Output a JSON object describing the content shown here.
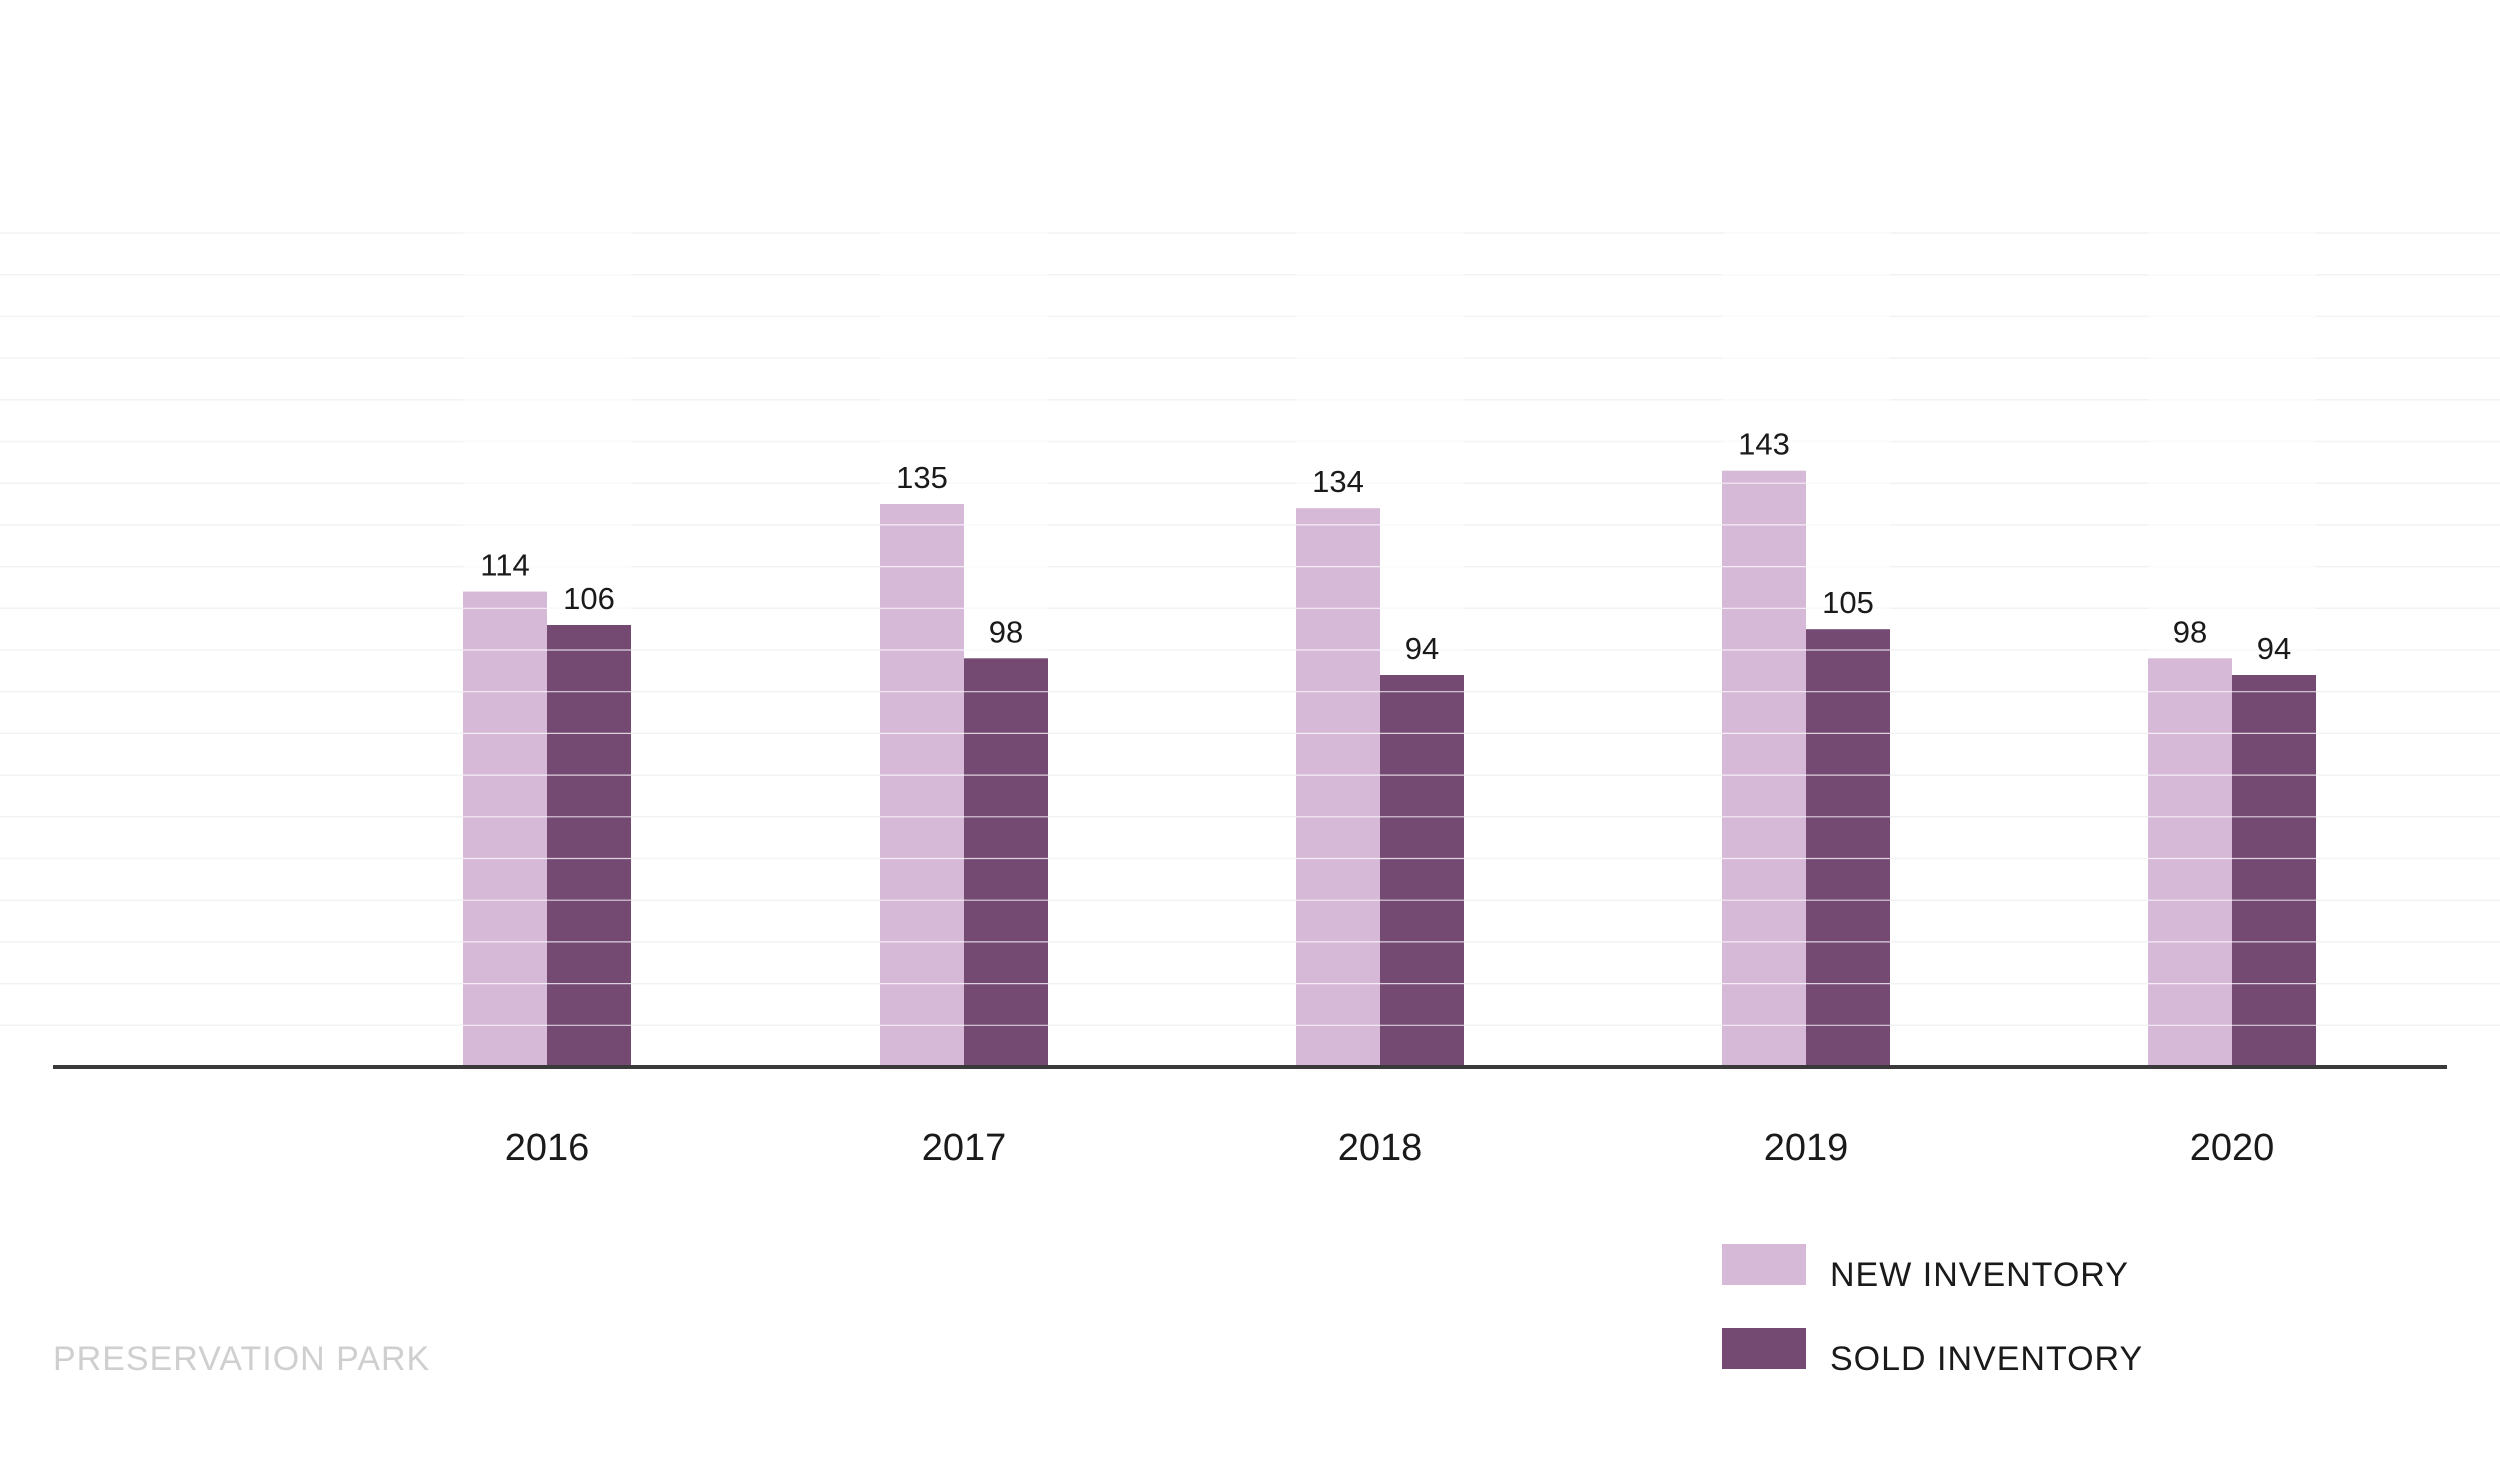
{
  "chart_data": {
    "type": "bar",
    "categories": [
      "2016",
      "2017",
      "2018",
      "2019",
      "2020"
    ],
    "series": [
      {
        "name": "NEW INVENTORY",
        "values": [
          114,
          135,
          134,
          143,
          98
        ],
        "color": "#d6b8d7"
      },
      {
        "name": "SOLD INVENTORY",
        "values": [
          106,
          98,
          94,
          105,
          94
        ],
        "color": "#744a73"
      }
    ],
    "ylim": [
      0,
      200
    ],
    "grid": true,
    "legend_position": "bottom-right"
  },
  "footer": {
    "label": "PRESERVATION PARK"
  },
  "colors": {
    "axis": "#3a3a3a",
    "grid": "#f2f2f2",
    "bar_grid": "#ffffff"
  }
}
